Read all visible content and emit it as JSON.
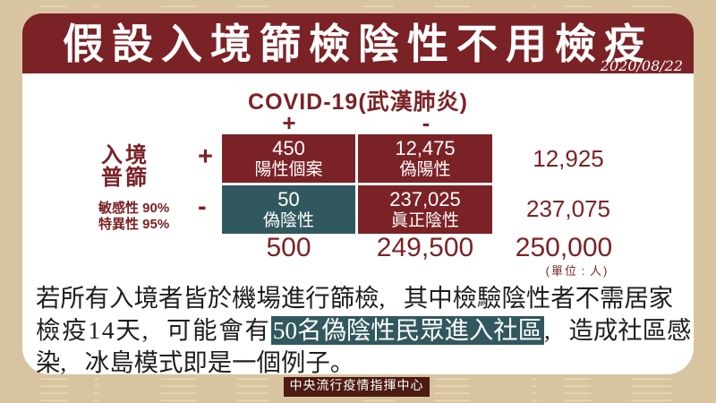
{
  "banner": {
    "title": "假設入境篩檢陰性不用檢疫",
    "date": "2020/08/22",
    "bg_color": "#7B2226"
  },
  "matrix": {
    "header": "COVID-19(武漢肺炎)",
    "col_plus": "+",
    "col_minus": "-",
    "row_group_line1": "入境",
    "row_group_line2": "普篩",
    "row_plus": "+",
    "row_minus": "-",
    "sensitivity": "敏感性 90%",
    "specificity": "特異性 95%",
    "cells": [
      {
        "value": "450",
        "label": "陽性個案",
        "color": "#7B2226"
      },
      {
        "value": "12,475",
        "label": "偽陽性",
        "color": "#7B2226"
      },
      {
        "value": "50",
        "label": "偽陰性",
        "color": "#31585E"
      },
      {
        "value": "237,025",
        "label": "眞正陰性",
        "color": "#7B2226"
      }
    ],
    "row_totals": [
      "12,925",
      "237,075"
    ],
    "col_totals": [
      "500",
      "249,500"
    ],
    "grand_total": "250,000",
    "unit_note": "(單位:人)"
  },
  "body": {
    "line1": "若所有入境者皆於機場進行篩檢,其中檢驗陰性者不需居家",
    "line2_pre": "檢疫14天,可能會有",
    "line2_highlight": "50名偽陰性民眾進入社區",
    "line2_post": ",造成社區感",
    "line3": "染,冰島模式即是一個例子。",
    "highlight_bg": "#31585E"
  },
  "footer": {
    "badge": "中央流行疫情指揮中心",
    "badge_bg": "#4C1B11"
  }
}
